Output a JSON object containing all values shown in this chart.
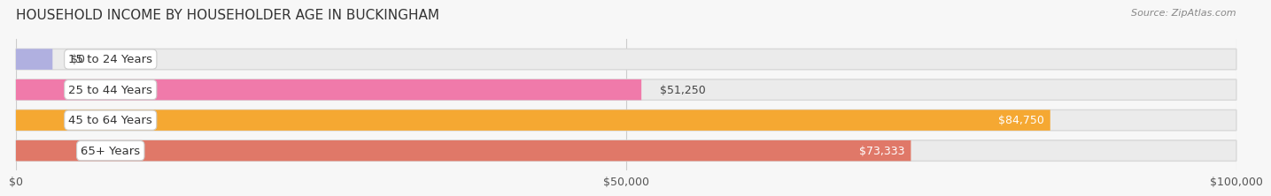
{
  "title": "HOUSEHOLD INCOME BY HOUSEHOLDER AGE IN BUCKINGHAM",
  "source": "Source: ZipAtlas.com",
  "categories": [
    "15 to 24 Years",
    "25 to 44 Years",
    "45 to 64 Years",
    "65+ Years"
  ],
  "values": [
    0,
    51250,
    84750,
    73333
  ],
  "bar_colors": [
    "#b0b0e0",
    "#f07aaa",
    "#f5a832",
    "#e07868"
  ],
  "bar_bg_color": "#ebebeb",
  "value_labels": [
    "$0",
    "$51,250",
    "$84,750",
    "$73,333"
  ],
  "value_label_inside": [
    false,
    false,
    true,
    true
  ],
  "xlim": [
    0,
    100000
  ],
  "xticks": [
    0,
    50000,
    100000
  ],
  "xtick_labels": [
    "$0",
    "$50,000",
    "$100,000"
  ],
  "background_color": "#f7f7f7",
  "bar_height": 0.68,
  "bar_gap": 0.32,
  "title_fontsize": 11,
  "label_fontsize": 9.5,
  "tick_fontsize": 9,
  "value_fontsize": 9
}
